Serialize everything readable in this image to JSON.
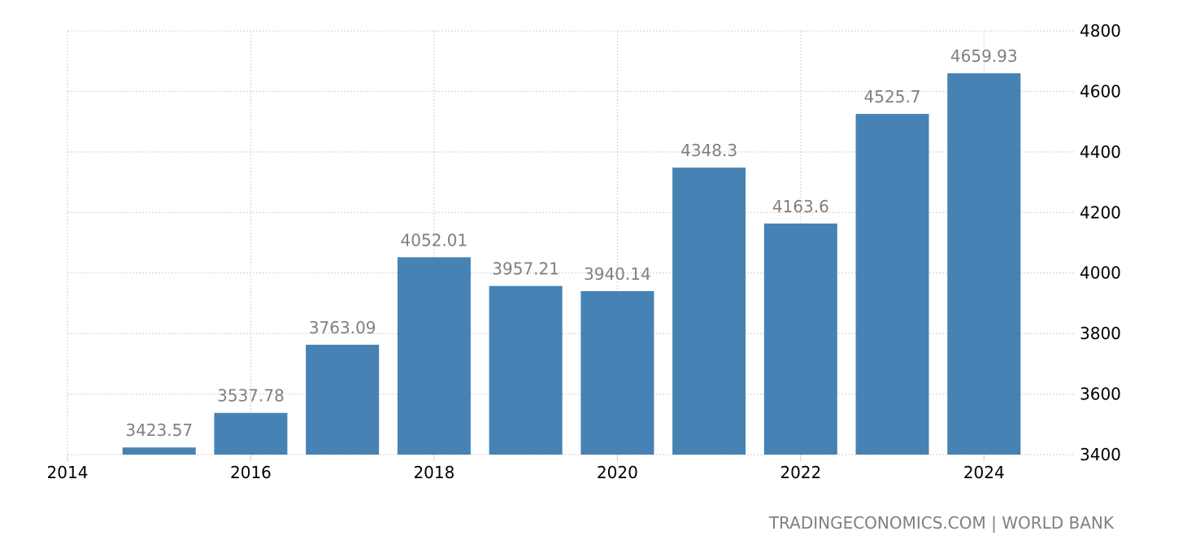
{
  "chart_data": {
    "type": "bar",
    "title": "",
    "xlabel": "",
    "ylabel": "",
    "categories": [
      "2015",
      "2016",
      "2017",
      "2018",
      "2019",
      "2020",
      "2021",
      "2022",
      "2023",
      "2024"
    ],
    "x": [
      2015,
      2016,
      2017,
      2018,
      2019,
      2020,
      2021,
      2022,
      2023,
      2024
    ],
    "values": [
      3423.57,
      3537.78,
      3763.09,
      4052.01,
      3957.21,
      3940.14,
      4348.3,
      4163.6,
      4525.7,
      4659.93
    ],
    "data_labels": [
      "3423.57",
      "3537.78",
      "3763.09",
      "4052.01",
      "3957.21",
      "3940.14",
      "4348.3",
      "4163.6",
      "4525.7",
      "4659.93"
    ],
    "xlim": [
      2014,
      2025
    ],
    "ylim": [
      3400,
      4800
    ],
    "x_ticks": [
      "2014",
      "2016",
      "2018",
      "2020",
      "2022",
      "2024"
    ],
    "y_ticks": [
      "3400",
      "3600",
      "3800",
      "4000",
      "4200",
      "4400",
      "4600",
      "4800"
    ],
    "y_axis_side": "right",
    "grid": true,
    "bar_color": "#4682b4",
    "label_color": "#808080"
  },
  "credit": "TRADINGECONOMICS.COM | WORLD BANK"
}
